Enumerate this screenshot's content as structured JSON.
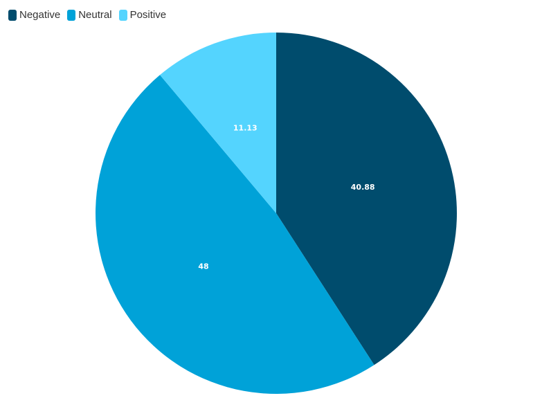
{
  "chart_data": {
    "type": "pie",
    "categories": [
      "Negative",
      "Neutral",
      "Positive"
    ],
    "values": [
      40.88,
      48,
      11.13
    ],
    "value_labels": [
      "40.88",
      "48",
      "11.13"
    ],
    "colors": [
      "#004c6d",
      "#00a2d8",
      "#54d4fe"
    ],
    "legend_position": "top-left",
    "start_angle": "12 o'clock",
    "direction": "clockwise"
  }
}
